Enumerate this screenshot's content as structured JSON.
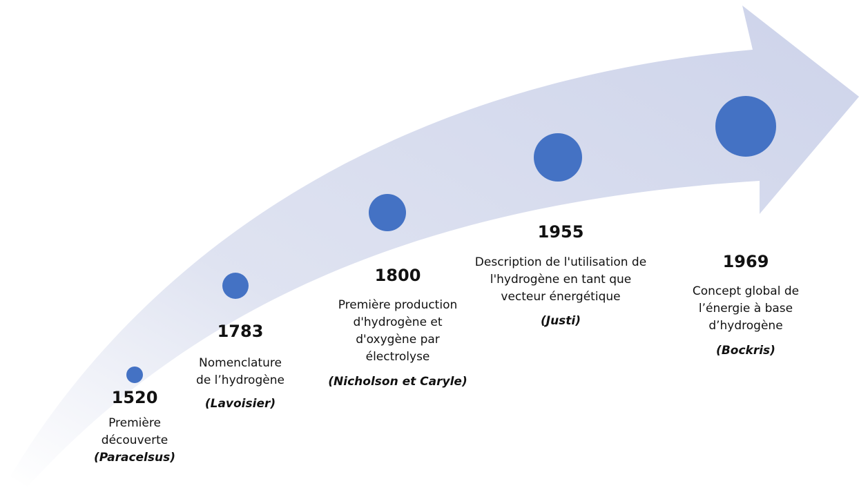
{
  "events": [
    {
      "year": "1520",
      "description": [
        "Première",
        "découverte"
      ],
      "author": "(Paracelsus)"
    },
    {
      "year": "1783",
      "description": [
        "Nomenclature",
        "de l’hydrogène"
      ],
      "author": "(Lavoisier)"
    },
    {
      "year": "1800",
      "description": [
        "Première production",
        "d'hydrogène et",
        "d'oxygène par",
        "électrolyse"
      ],
      "author": "(Nicholson et Caryle)"
    },
    {
      "year": "1955",
      "description": [
        "Description de l'utilisation de",
        "l'hydrogène en tant que",
        "vecteur énergétique"
      ],
      "author": "(Justi)"
    },
    {
      "year": "1969",
      "description": [
        "Concept global de",
        "l’énergie à base",
        "d’hydrogène"
      ],
      "author": "(Bockris)"
    }
  ]
}
